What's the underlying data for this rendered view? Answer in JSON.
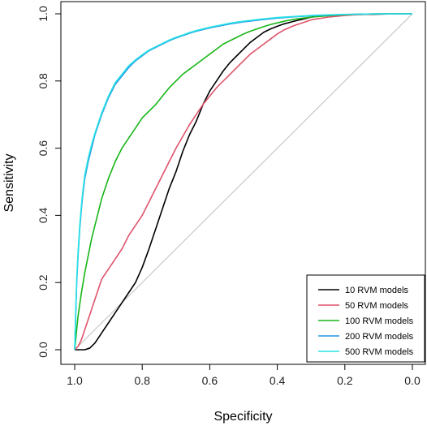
{
  "chart_data": {
    "type": "line",
    "xlabel": "Specificity",
    "ylabel": "Sensitivity",
    "xlim": [
      1.0,
      0.0
    ],
    "ylim": [
      0.0,
      1.0
    ],
    "x_reversed": true,
    "x_ticks": [
      "1.0",
      "0.8",
      "0.6",
      "0.4",
      "0.2",
      "0.0"
    ],
    "y_ticks": [
      "0.0",
      "0.2",
      "0.4",
      "0.6",
      "0.8",
      "1.0"
    ],
    "grid": false,
    "legend_position": "bottom-right",
    "reference_line": {
      "color": "#bebebe",
      "from": [
        1.0,
        0.0
      ],
      "to": [
        0.0,
        1.0
      ]
    },
    "series": [
      {
        "name": "10 RVM models",
        "color": "#000000",
        "points": [
          [
            1.0,
            0.0
          ],
          [
            0.99,
            0.0
          ],
          [
            0.97,
            0.0
          ],
          [
            0.955,
            0.005
          ],
          [
            0.94,
            0.02
          ],
          [
            0.92,
            0.05
          ],
          [
            0.9,
            0.08
          ],
          [
            0.88,
            0.11
          ],
          [
            0.86,
            0.14
          ],
          [
            0.84,
            0.17
          ],
          [
            0.82,
            0.2
          ],
          [
            0.8,
            0.245
          ],
          [
            0.78,
            0.3
          ],
          [
            0.76,
            0.36
          ],
          [
            0.74,
            0.42
          ],
          [
            0.72,
            0.48
          ],
          [
            0.7,
            0.53
          ],
          [
            0.68,
            0.59
          ],
          [
            0.66,
            0.64
          ],
          [
            0.64,
            0.68
          ],
          [
            0.62,
            0.73
          ],
          [
            0.6,
            0.77
          ],
          [
            0.58,
            0.8
          ],
          [
            0.56,
            0.83
          ],
          [
            0.54,
            0.855
          ],
          [
            0.52,
            0.875
          ],
          [
            0.5,
            0.895
          ],
          [
            0.48,
            0.915
          ],
          [
            0.46,
            0.93
          ],
          [
            0.44,
            0.945
          ],
          [
            0.42,
            0.955
          ],
          [
            0.4,
            0.963
          ],
          [
            0.38,
            0.97
          ],
          [
            0.35,
            0.978
          ],
          [
            0.32,
            0.985
          ],
          [
            0.3,
            0.99
          ],
          [
            0.28,
            0.993
          ],
          [
            0.25,
            0.995
          ],
          [
            0.2,
            0.997
          ],
          [
            0.15,
            0.998
          ],
          [
            0.1,
            0.999
          ],
          [
            0.05,
            1.0
          ],
          [
            0.0,
            1.0
          ]
        ]
      },
      {
        "name": "50 RVM models",
        "color": "#df536b",
        "points": [
          [
            1.0,
            0.0
          ],
          [
            0.99,
            0.01
          ],
          [
            0.98,
            0.03
          ],
          [
            0.97,
            0.06
          ],
          [
            0.96,
            0.09
          ],
          [
            0.95,
            0.12
          ],
          [
            0.94,
            0.15
          ],
          [
            0.93,
            0.18
          ],
          [
            0.92,
            0.21
          ],
          [
            0.9,
            0.24
          ],
          [
            0.88,
            0.27
          ],
          [
            0.86,
            0.3
          ],
          [
            0.84,
            0.34
          ],
          [
            0.82,
            0.37
          ],
          [
            0.8,
            0.4
          ],
          [
            0.78,
            0.44
          ],
          [
            0.76,
            0.48
          ],
          [
            0.74,
            0.52
          ],
          [
            0.72,
            0.56
          ],
          [
            0.7,
            0.6
          ],
          [
            0.68,
            0.635
          ],
          [
            0.66,
            0.67
          ],
          [
            0.64,
            0.7
          ],
          [
            0.62,
            0.73
          ],
          [
            0.6,
            0.755
          ],
          [
            0.58,
            0.78
          ],
          [
            0.56,
            0.8
          ],
          [
            0.54,
            0.82
          ],
          [
            0.52,
            0.84
          ],
          [
            0.5,
            0.86
          ],
          [
            0.48,
            0.88
          ],
          [
            0.46,
            0.895
          ],
          [
            0.44,
            0.91
          ],
          [
            0.42,
            0.925
          ],
          [
            0.4,
            0.94
          ],
          [
            0.38,
            0.952
          ],
          [
            0.35,
            0.965
          ],
          [
            0.32,
            0.975
          ],
          [
            0.3,
            0.982
          ],
          [
            0.25,
            0.99
          ],
          [
            0.2,
            0.995
          ],
          [
            0.15,
            0.998
          ],
          [
            0.1,
            1.0
          ],
          [
            0.0,
            1.0
          ]
        ]
      },
      {
        "name": "100 RVM models",
        "color": "#18b618",
        "points": [
          [
            1.0,
            0.0
          ],
          [
            0.995,
            0.05
          ],
          [
            0.99,
            0.1
          ],
          [
            0.98,
            0.17
          ],
          [
            0.97,
            0.23
          ],
          [
            0.96,
            0.28
          ],
          [
            0.95,
            0.33
          ],
          [
            0.94,
            0.37
          ],
          [
            0.93,
            0.41
          ],
          [
            0.92,
            0.45
          ],
          [
            0.91,
            0.48
          ],
          [
            0.9,
            0.51
          ],
          [
            0.88,
            0.56
          ],
          [
            0.86,
            0.6
          ],
          [
            0.84,
            0.63
          ],
          [
            0.82,
            0.66
          ],
          [
            0.8,
            0.69
          ],
          [
            0.78,
            0.71
          ],
          [
            0.76,
            0.73
          ],
          [
            0.74,
            0.755
          ],
          [
            0.72,
            0.78
          ],
          [
            0.7,
            0.8
          ],
          [
            0.68,
            0.82
          ],
          [
            0.66,
            0.835
          ],
          [
            0.64,
            0.85
          ],
          [
            0.62,
            0.865
          ],
          [
            0.6,
            0.88
          ],
          [
            0.58,
            0.895
          ],
          [
            0.56,
            0.91
          ],
          [
            0.54,
            0.92
          ],
          [
            0.52,
            0.93
          ],
          [
            0.5,
            0.94
          ],
          [
            0.48,
            0.948
          ],
          [
            0.46,
            0.955
          ],
          [
            0.44,
            0.962
          ],
          [
            0.42,
            0.968
          ],
          [
            0.4,
            0.973
          ],
          [
            0.37,
            0.98
          ],
          [
            0.34,
            0.985
          ],
          [
            0.3,
            0.99
          ],
          [
            0.25,
            0.994
          ],
          [
            0.2,
            0.997
          ],
          [
            0.15,
            0.999
          ],
          [
            0.1,
            1.0
          ],
          [
            0.0,
            1.0
          ]
        ]
      },
      {
        "name": "200 RVM models",
        "color": "#2297e6",
        "points": [
          [
            1.0,
            0.0
          ],
          [
            0.997,
            0.1
          ],
          [
            0.994,
            0.2
          ],
          [
            0.99,
            0.28
          ],
          [
            0.985,
            0.36
          ],
          [
            0.98,
            0.42
          ],
          [
            0.975,
            0.47
          ],
          [
            0.97,
            0.51
          ],
          [
            0.96,
            0.56
          ],
          [
            0.95,
            0.6
          ],
          [
            0.94,
            0.64
          ],
          [
            0.93,
            0.67
          ],
          [
            0.92,
            0.7
          ],
          [
            0.91,
            0.725
          ],
          [
            0.9,
            0.75
          ],
          [
            0.88,
            0.79
          ],
          [
            0.86,
            0.815
          ],
          [
            0.84,
            0.84
          ],
          [
            0.82,
            0.86
          ],
          [
            0.8,
            0.875
          ],
          [
            0.78,
            0.89
          ],
          [
            0.76,
            0.9
          ],
          [
            0.74,
            0.91
          ],
          [
            0.72,
            0.92
          ],
          [
            0.7,
            0.928
          ],
          [
            0.68,
            0.935
          ],
          [
            0.66,
            0.942
          ],
          [
            0.64,
            0.948
          ],
          [
            0.62,
            0.953
          ],
          [
            0.6,
            0.958
          ],
          [
            0.58,
            0.962
          ],
          [
            0.56,
            0.966
          ],
          [
            0.54,
            0.97
          ],
          [
            0.52,
            0.973
          ],
          [
            0.5,
            0.976
          ],
          [
            0.45,
            0.982
          ],
          [
            0.4,
            0.987
          ],
          [
            0.35,
            0.991
          ],
          [
            0.3,
            0.994
          ],
          [
            0.25,
            0.996
          ],
          [
            0.2,
            0.998
          ],
          [
            0.15,
            0.999
          ],
          [
            0.1,
            1.0
          ],
          [
            0.0,
            1.0
          ]
        ]
      },
      {
        "name": "500 RVM models",
        "color": "#28e2e5",
        "points": [
          [
            1.0,
            0.0
          ],
          [
            0.997,
            0.11
          ],
          [
            0.994,
            0.21
          ],
          [
            0.99,
            0.29
          ],
          [
            0.985,
            0.37
          ],
          [
            0.98,
            0.43
          ],
          [
            0.975,
            0.48
          ],
          [
            0.97,
            0.52
          ],
          [
            0.96,
            0.57
          ],
          [
            0.95,
            0.61
          ],
          [
            0.94,
            0.645
          ],
          [
            0.93,
            0.675
          ],
          [
            0.92,
            0.705
          ],
          [
            0.91,
            0.73
          ],
          [
            0.9,
            0.755
          ],
          [
            0.88,
            0.795
          ],
          [
            0.86,
            0.82
          ],
          [
            0.84,
            0.845
          ],
          [
            0.82,
            0.863
          ],
          [
            0.8,
            0.878
          ],
          [
            0.78,
            0.892
          ],
          [
            0.76,
            0.902
          ],
          [
            0.74,
            0.912
          ],
          [
            0.72,
            0.922
          ],
          [
            0.7,
            0.93
          ],
          [
            0.68,
            0.937
          ],
          [
            0.66,
            0.944
          ],
          [
            0.64,
            0.95
          ],
          [
            0.62,
            0.955
          ],
          [
            0.6,
            0.96
          ],
          [
            0.58,
            0.964
          ],
          [
            0.56,
            0.968
          ],
          [
            0.54,
            0.972
          ],
          [
            0.52,
            0.975
          ],
          [
            0.5,
            0.978
          ],
          [
            0.45,
            0.984
          ],
          [
            0.4,
            0.989
          ],
          [
            0.35,
            0.992
          ],
          [
            0.3,
            0.995
          ],
          [
            0.25,
            0.997
          ],
          [
            0.2,
            0.998
          ],
          [
            0.15,
            0.999
          ],
          [
            0.1,
            1.0
          ],
          [
            0.0,
            1.0
          ]
        ]
      }
    ]
  }
}
